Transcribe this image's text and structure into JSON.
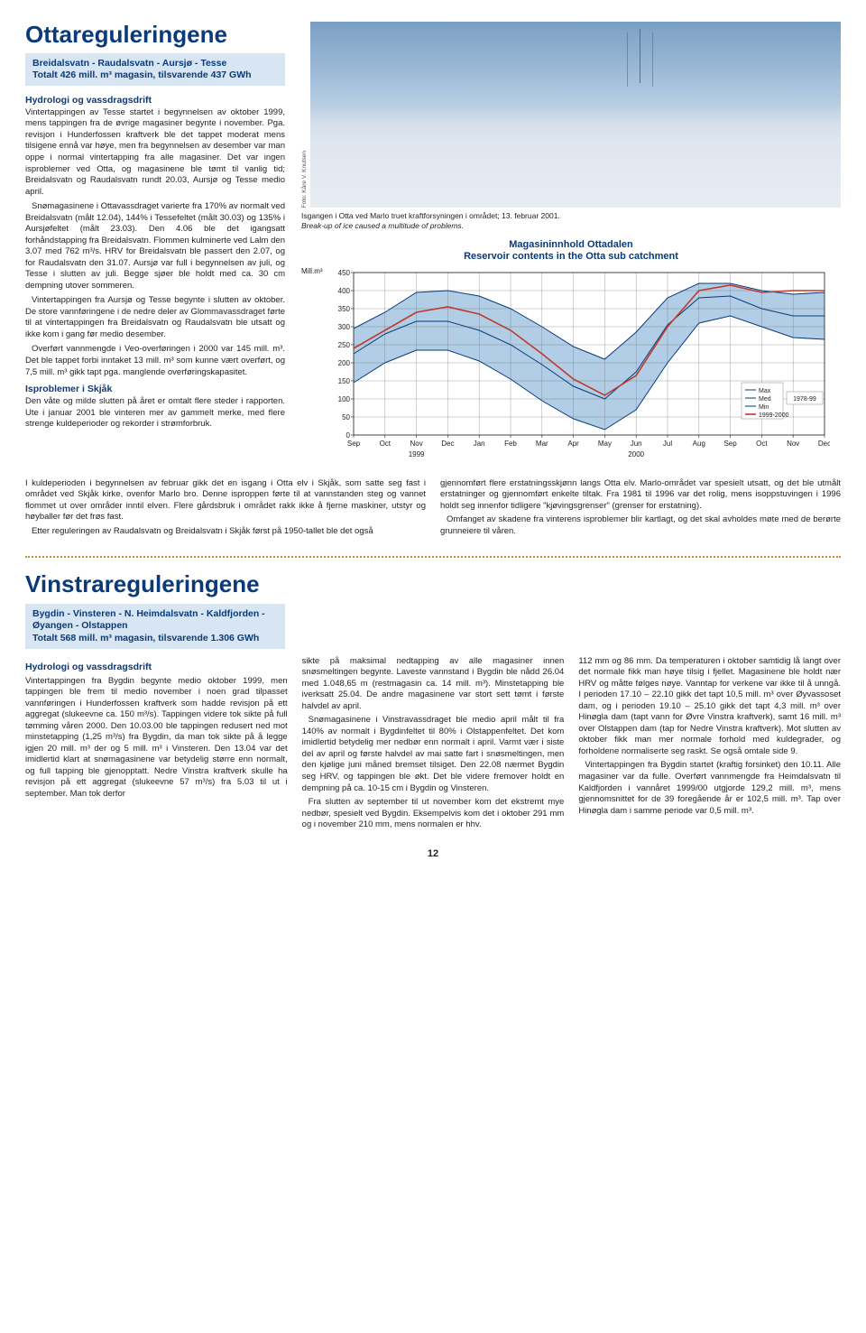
{
  "otta": {
    "title": "Ottareguleringene",
    "caption_l1": "Breidalsvatn - Raudalsvatn - Aursjø - Tesse",
    "caption_l2": "Totalt 426 mill. m³ magasin, tilsvarende 437 GWh",
    "section_head": "Hydrologi og vassdragsdrift",
    "body": "Vintertappingen av Tesse startet i begynnelsen av oktober 1999, mens tappingen fra de øvrige magasiner begynte i november. Pga. revisjon i Hunderfossen kraftverk ble det tappet moderat mens tilsigene ennå var høye, men fra begynnelsen av desember var man oppe i normal vintertapping fra alle magasiner. Det var ingen isproblemer ved Otta, og magasinene ble tømt til vanlig tid; Breidalsvatn og Raudalsvatn rundt 20.03, Aursjø og Tesse medio april.\nSnømagasinene i Ottavassdraget varierte fra 170% av normalt ved Breidalsvatn (målt 12.04), 144% i Tessefeltet (målt 30.03) og 135% i Aursjøfeltet (målt 23.03). Den 4.06 ble det igangsatt forhåndstapping fra Breidalsvatn. Flommen kulminerte ved Lalm den 3.07 med 762 m³/s. HRV for Breidalsvatn ble passert den 2.07, og for Raudalsvatn den 31.07. Aursjø var full i begynnelsen av juli, og Tesse i slutten av juli. Begge sjøer ble holdt med ca. 30 cm dempning utover sommeren.\nVintertappingen fra Aursjø og Tesse begynte i slutten av oktober. De store vannføringene i de nedre deler av Glommavassdraget førte til at vintertappingen fra Breidalsvatn og Raudalsvatn ble utsatt og ikke kom i gang før medio desember.\nOverført vannmengde i Veo-overføringen i 2000 var 145 mill. m³. Det ble tappet forbi inntaket 13 mill. m³ som kunne vært overført, og 7,5 mill. m³ gikk tapt pga. manglende overføringskapasitet.",
    "sub2": "Isproblemer i Skjåk",
    "body2": "Den våte og milde slutten på året er omtalt flere steder i rapporten. Ute i januar 2001 ble vinteren mer av gammelt merke, med flere strenge kuldeperioder og rekorder i strømforbruk.",
    "photo_credit": "Foto: Kåre V. Knutsen",
    "photo_caption": "Isgangen i Otta ved Marlo truet kraftforsyningen i området; 13. februar 2001.",
    "photo_caption_en": "Break-up of ice caused a multitude of problems.",
    "chart": {
      "title_l1": "Magasininnhold Ottadalen",
      "title_l2": "Reservoir contents in the Otta sub catchment",
      "y_label": "Mill.m³",
      "ylim": [
        0,
        450
      ],
      "ytick_step": 50,
      "months": [
        "Sep",
        "Oct",
        "Nov",
        "Dec",
        "Jan",
        "Feb",
        "Mar",
        "Apr",
        "May",
        "Jun",
        "Jul",
        "Aug",
        "Sep",
        "Oct",
        "Nov",
        "Dec"
      ],
      "year_left": "1999",
      "year_right": "2000",
      "band_fill": "#b2cee6",
      "grid_color": "#666666",
      "series": {
        "max": {
          "label": "Max",
          "color": "#0a3a7a",
          "width": 1,
          "values": [
            295,
            340,
            395,
            400,
            385,
            350,
            300,
            245,
            210,
            285,
            380,
            420,
            420,
            400,
            390,
            395
          ]
        },
        "med": {
          "label": "Med",
          "color": "#0a3a7a",
          "width": 1,
          "values": [
            225,
            280,
            315,
            315,
            290,
            250,
            195,
            135,
            100,
            175,
            305,
            380,
            385,
            350,
            330,
            330
          ]
        },
        "min": {
          "label": "Min",
          "color": "#0a3a7a",
          "width": 1,
          "values": [
            145,
            200,
            235,
            235,
            205,
            155,
            95,
            45,
            15,
            70,
            200,
            310,
            330,
            300,
            270,
            265
          ]
        },
        "hist": {
          "label": "1978-99",
          "color": "#0a3a7a",
          "width": 1,
          "values": [
            225,
            280,
            315,
            315,
            290,
            250,
            195,
            135,
            100,
            175,
            305,
            380,
            385,
            350,
            330,
            330
          ]
        },
        "cur": {
          "label": "1999-2000",
          "color": "#c0392b",
          "width": 1.6,
          "values": [
            240,
            290,
            340,
            355,
            335,
            290,
            225,
            155,
            110,
            165,
            300,
            400,
            415,
            395,
            400,
            400
          ]
        }
      },
      "legend_bg": "#ffffff",
      "legend_border": "#888888"
    },
    "col_mid": "I kuldeperioden i begynnelsen av februar gikk det en isgang i Otta elv i Skjåk, som satte seg fast i området ved Skjåk kirke, ovenfor Marlo bro. Denne isproppen førte til at vannstanden steg og vannet flommet ut over områder inntil elven. Flere gårdsbruk i området rakk ikke å fjerne maskiner, utstyr og høyballer før det frøs fast.\nEtter reguleringen av Raudalsvatn og Breidalsvatn i Skjåk først på 1950-tallet ble det også",
    "col_right": "gjennomført flere erstatningsskjønn langs Otta elv. Marlo-området var spesielt utsatt, og det ble utmålt erstatninger og gjennomført enkelte tiltak. Fra 1981 til 1996 var det rolig, mens isoppstuvingen i 1996 holdt seg innenfor tidligere \"kjøvingsgrenser\" (grenser for erstatning).\nOmfanget av skadene fra vinterens isproblemer blir kartlagt, og det skal avholdes møte med de berørte grunneiere til våren."
  },
  "vinstra": {
    "title": "Vinstrareguleringene",
    "caption": "Bygdin - Vinsteren - N. Heimdalsvatn - Kaldfjorden - Øyangen - Olstappen\nTotalt 568 mill. m³ magasin, tilsvarende 1.306 GWh",
    "section_head": "Hydrologi og vassdragsdrift",
    "col1": "Vintertappingen fra Bygdin begynte medio oktober 1999, men tappingen ble frem til medio november i noen grad tilpasset vannføringen i Hunderfossen kraftverk som hadde revisjon på ett aggregat (slukeevne ca. 150 m³/s). Tappingen videre tok sikte på full tømming våren 2000. Den 10.03.00 ble tappingen redusert ned mot minstetapping (1,25 m³/s) fra Bygdin, da man tok sikte på å legge igjen 20 mill. m³ der og 5 mill. m³ i Vinsteren. Den 13.04 var det imidlertid klart at snømagasinene var betydelig større enn normalt, og full tapping ble gjenopptatt. Nedre Vinstra kraftverk skulle ha revisjon på ett aggregat (slukeevne 57 m³/s) fra 5.03 til ut i september. Man tok derfor",
    "col2": "sikte på maksimal nedtapping av alle magasiner innen snøsmeltingen begynte. Laveste vannstand i Bygdin ble nådd 26.04 med 1.048,65 m (restmagasin ca. 14 mill. m³). Minstetapping ble iverksatt 25.04. De andre magasinene var stort sett tømt i første halvdel av april.\nSnømagasinene i Vinstravassdraget ble medio april målt til fra 140% av normalt i Bygdinfeltet til 80% i Olstappenfeltet. Det kom imidlertid betydelig mer nedbør enn normalt i april. Varmt vær i siste del av april og første halvdel av mai satte fart i snøsmeltingen, men den kjølige juni måned bremset tilsiget. Den 22.08 nærmet Bygdin seg HRV, og tappingen ble økt. Det ble videre fremover holdt en dempning på ca. 10-15 cm i Bygdin og Vinsteren.\nFra slutten av september til ut november kom det ekstremt mye nedbør, spesielt ved Bygdin. Eksempelvis kom det i oktober 291 mm og i november 210 mm, mens normalen er hhv.",
    "col3": "112 mm og 86 mm. Da temperaturen i oktober samtidig lå langt over det normale fikk man høye tilsig i fjellet. Magasinene ble holdt nær HRV og måtte følges nøye. Vanntap for verkene var ikke til å unngå. I perioden 17.10 – 22.10 gikk det tapt 10,5 mill. m³ over Øyvassoset dam, og i perioden 19.10 – 25.10 gikk det tapt 4,3 mill. m³ over Hinøgla dam (tapt vann for Øvre Vinstra kraftverk), samt 16 mill. m³ over Olstappen dam (tap for Nedre Vinstra kraftverk). Mot slutten av oktober fikk man mer normale forhold med kuldegrader, og forholdene normaliserte seg raskt. Se også omtale side 9.\nVintertappingen fra Bygdin startet (kraftig forsinket) den 10.11. Alle magasiner var da fulle. Overført vannmengde fra Heimdalsvatn til Kaldfjorden i vannåret 1999/00 utgjorde 129,2 mill. m³, mens gjennomsnittet for de 39 foregående år er 102,5 mill. m³. Tap over Hinøgla dam i samme periode var 0,5 mill. m³."
  },
  "page_number": "12"
}
